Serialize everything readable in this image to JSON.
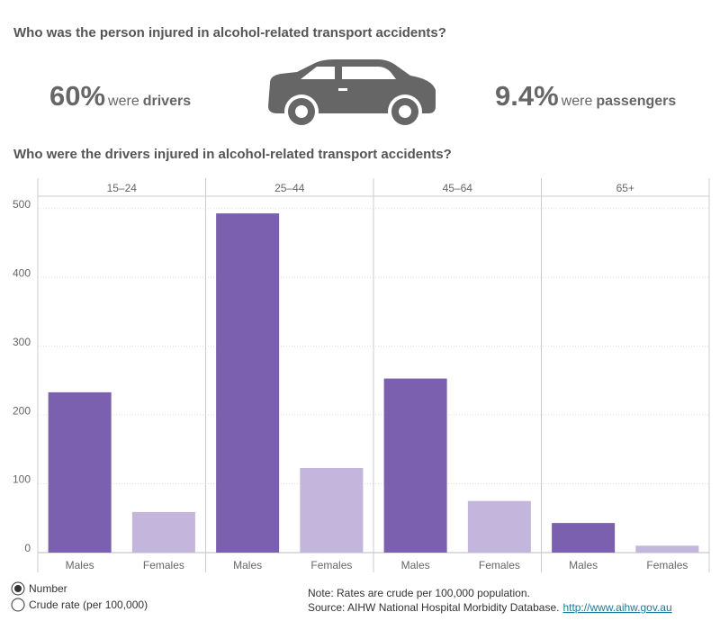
{
  "header": {
    "title": "Who was the person injured in alcohol-related transport accidents?"
  },
  "stats": [
    {
      "value": "60%",
      "word": "were",
      "label": "drivers"
    },
    {
      "value": "9.4%",
      "word": "were",
      "label": "passengers"
    }
  ],
  "chart_data": {
    "type": "bar",
    "title": "Who were the drivers injured in alcohol-related transport accidents?",
    "categories": [
      "15–24",
      "25–44",
      "45–64",
      "65+"
    ],
    "series": [
      {
        "name": "Males",
        "color": "#7a60ae",
        "values": [
          233,
          493,
          253,
          43
        ]
      },
      {
        "name": "Females",
        "color": "#c4b5dc",
        "values": [
          59,
          123,
          75,
          10
        ]
      }
    ],
    "ylim": [
      0,
      518
    ],
    "yticks": [
      0,
      100,
      200,
      300,
      400,
      500
    ],
    "grid": true
  },
  "controls": {
    "options": [
      "Number",
      "Crude rate (per 100,000)"
    ],
    "selected": 0
  },
  "footer": {
    "note": "Note: Rates are crude per 100,000 population.",
    "source": "Source: AIHW National Hospital Morbidity Database.",
    "link": "http://www.aihw.gov.au"
  }
}
